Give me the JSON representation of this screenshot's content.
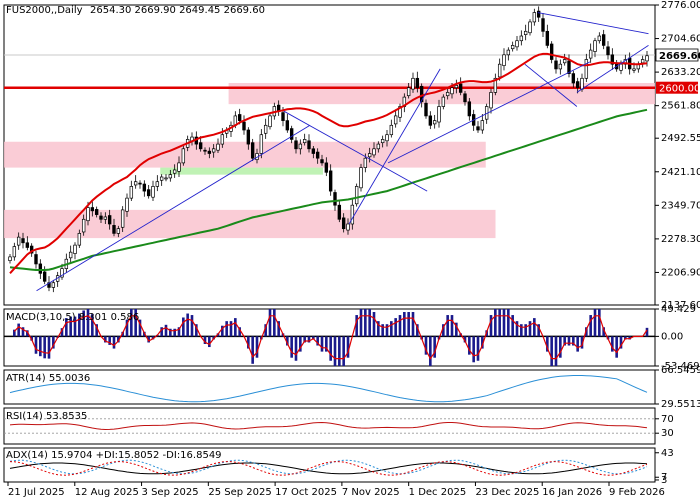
{
  "chart_data": {
    "type": "candlestick",
    "symbol_label": "FUS2000,,Daily",
    "ohlc_label": "2654.30 2669.90 2649.45 2669.60",
    "price_axis": {
      "min": 2137.6,
      "max": 2776.0,
      "ticks": [
        "2776.00",
        "2704.60",
        "2633.20",
        "2561.80",
        "2492.55",
        "2421.10",
        "2349.70",
        "2278.30",
        "2206.90",
        "2137.60"
      ]
    },
    "current_price": "2669.60",
    "level_label": "2600.00",
    "level_value": 2600.0,
    "x_labels": [
      "21 Jul 2025",
      "12 Aug 2025",
      "3 Sep 2025",
      "25 Sep 2025",
      "17 Oct 2025",
      "7 Nov 2025",
      "1 Dec 2025",
      "23 Dec 2025",
      "16 Jan 2026",
      "9 Feb 2026"
    ],
    "zones": [
      {
        "from": 2565,
        "to": 2610,
        "start": 0.345,
        "end": 1.0,
        "color": "#f9c3cf"
      },
      {
        "from": 2430,
        "to": 2485,
        "start": 0.0,
        "end": 0.74,
        "color": "#f9c3cf"
      },
      {
        "from": 2415,
        "to": 2430,
        "start": 0.24,
        "end": 0.49,
        "color": "#b5f0a8"
      },
      {
        "from": 2280,
        "to": 2340,
        "start": 0.0,
        "end": 0.755,
        "color": "#f9c3cf"
      }
    ],
    "closes": [
      2240,
      2262,
      2282,
      2270,
      2260,
      2248,
      2225,
      2205,
      2188,
      2175,
      2185,
      2200,
      2215,
      2235,
      2250,
      2265,
      2290,
      2320,
      2345,
      2338,
      2330,
      2320,
      2325,
      2310,
      2290,
      2300,
      2340,
      2365,
      2390,
      2400,
      2395,
      2380,
      2370,
      2390,
      2400,
      2410,
      2408,
      2415,
      2425,
      2440,
      2470,
      2490,
      2495,
      2480,
      2470,
      2465,
      2460,
      2470,
      2480,
      2500,
      2510,
      2520,
      2540,
      2530,
      2510,
      2480,
      2450,
      2460,
      2500,
      2520,
      2540,
      2560,
      2550,
      2530,
      2510,
      2490,
      2470,
      2480,
      2490,
      2470,
      2460,
      2450,
      2440,
      2420,
      2380,
      2350,
      2320,
      2300,
      2310,
      2350,
      2390,
      2430,
      2450,
      2460,
      2470,
      2480,
      2490,
      2500,
      2520,
      2540,
      2560,
      2580,
      2600,
      2620,
      2600,
      2570,
      2540,
      2520,
      2530,
      2560,
      2580,
      2590,
      2600,
      2605,
      2590,
      2570,
      2540,
      2520,
      2510,
      2530,
      2560,
      2590,
      2620,
      2650,
      2670,
      2680,
      2690,
      2700,
      2710,
      2720,
      2740,
      2760,
      2750,
      2720,
      2690,
      2660,
      2640,
      2650,
      2660,
      2630,
      2610,
      2600,
      2620,
      2660,
      2680,
      2700,
      2710,
      2690,
      2670,
      2650,
      2640,
      2650,
      2660,
      2640,
      2640,
      2650,
      2660,
      2668
    ],
    "ma_red": [
      2205,
      2215,
      2225,
      2235,
      2245,
      2252,
      2256,
      2258,
      2260,
      2265,
      2272,
      2280,
      2290,
      2300,
      2310,
      2320,
      2330,
      2340,
      2350,
      2360,
      2368,
      2375,
      2382,
      2388,
      2395,
      2400,
      2405,
      2410,
      2418,
      2426,
      2435,
      2442,
      2448,
      2452,
      2456,
      2460,
      2463,
      2466,
      2470,
      2474,
      2478,
      2482,
      2486,
      2490,
      2494,
      2496,
      2498,
      2500,
      2503,
      2506,
      2510,
      2515,
      2520,
      2526,
      2530,
      2534,
      2538,
      2540,
      2542,
      2544,
      2546,
      2548,
      2550,
      2552,
      2554,
      2555,
      2556,
      2556,
      2555,
      2553,
      2550,
      2546,
      2540,
      2535,
      2530,
      2525,
      2520,
      2518,
      2518,
      2520,
      2522,
      2525,
      2528,
      2530,
      2532,
      2535,
      2538,
      2542,
      2547,
      2552,
      2557,
      2562,
      2568,
      2574,
      2579,
      2583,
      2586,
      2588,
      2590,
      2593,
      2596,
      2600,
      2604,
      2608,
      2611,
      2613,
      2614,
      2614,
      2613,
      2612,
      2612,
      2613,
      2616,
      2620,
      2625,
      2630,
      2636,
      2642,
      2648,
      2654,
      2660,
      2666,
      2670,
      2672,
      2672,
      2670,
      2668,
      2666,
      2664,
      2660,
      2655,
      2650,
      2648,
      2648,
      2649,
      2651,
      2653,
      2654,
      2654,
      2653,
      2652,
      2652,
      2652,
      2651,
      2650,
      2650,
      2651,
      2652
    ],
    "ma_green": [
      2218,
      2217,
      2216,
      2215,
      2214,
      2213,
      2212,
      2212,
      2212,
      2213,
      2215,
      2218,
      2221,
      2224,
      2227,
      2230,
      2233,
      2236,
      2239,
      2242,
      2244,
      2246,
      2248,
      2250,
      2252,
      2254,
      2256,
      2258,
      2260,
      2262,
      2264,
      2266,
      2268,
      2270,
      2272,
      2274,
      2276,
      2278,
      2280,
      2282,
      2284,
      2286,
      2288,
      2290,
      2292,
      2294,
      2296,
      2298,
      2300,
      2303,
      2306,
      2309,
      2312,
      2315,
      2318,
      2321,
      2324,
      2326,
      2328,
      2330,
      2332,
      2334,
      2336,
      2338,
      2340,
      2342,
      2344,
      2346,
      2348,
      2350,
      2352,
      2354,
      2356,
      2357,
      2358,
      2359,
      2360,
      2361,
      2362,
      2364,
      2366,
      2368,
      2370,
      2372,
      2374,
      2376,
      2378,
      2380,
      2383,
      2386,
      2389,
      2392,
      2395,
      2398,
      2401,
      2404,
      2407,
      2410,
      2413,
      2416,
      2419,
      2422,
      2425,
      2428,
      2431,
      2434,
      2437,
      2440,
      2443,
      2446,
      2449,
      2452,
      2455,
      2458,
      2461,
      2464,
      2467,
      2470,
      2473,
      2476,
      2479,
      2482,
      2485,
      2488,
      2491,
      2494,
      2497,
      2500,
      2503,
      2506,
      2509,
      2512,
      2515,
      2518,
      2521,
      2524,
      2527,
      2530,
      2533,
      2536,
      2539,
      2541,
      2543,
      2545,
      2547,
      2549,
      2551,
      2553
    ],
    "macd": {
      "label": "MACD(3,10,5) 8.301 0.586",
      "axis_ticks": [
        "49.429",
        "0.00",
        "-53.469"
      ],
      "min": -53.469,
      "max": 49.429
    },
    "atr": {
      "label": "ATR(14) 55.0036",
      "axis_ticks": [
        "66.5459",
        "29.5513"
      ],
      "min": 29.5513,
      "max": 66.5459
    },
    "rsi": {
      "label": "RSI(14) 53.8535",
      "axis_ticks": [
        "70",
        "30"
      ],
      "min": 0,
      "max": 100
    },
    "adx": {
      "label": "ADX(14) 15.9704 +DI:15.8052 -DI:16.8549",
      "axis_ticks": [
        "43",
        "7",
        "3"
      ],
      "min": 0,
      "max": 50
    }
  }
}
